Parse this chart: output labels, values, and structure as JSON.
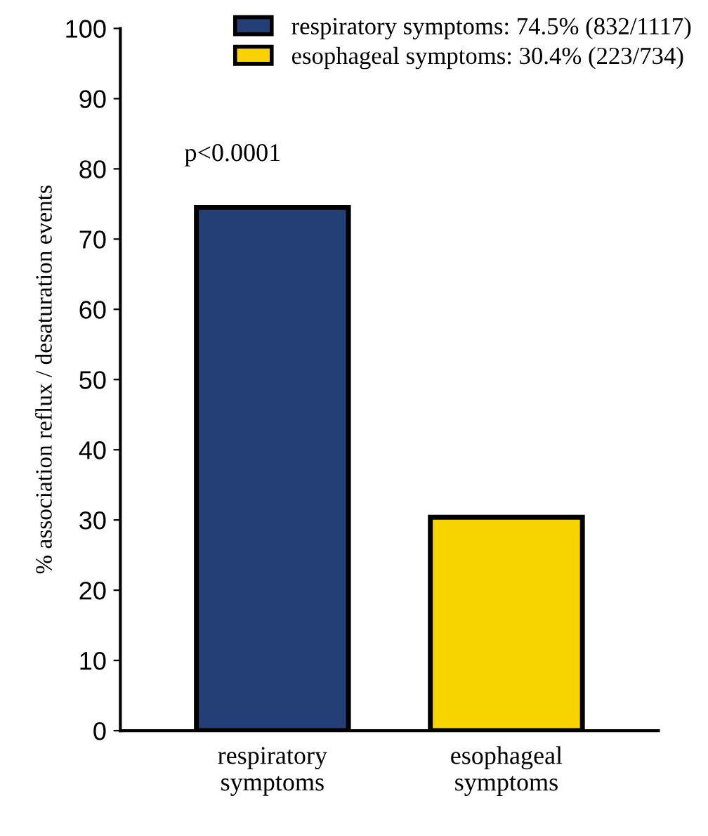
{
  "chart_data": {
    "type": "bar",
    "categories": [
      "respiratory\nsymptoms",
      "esophageal\nsymptoms"
    ],
    "series": [
      {
        "name": "respiratory symptoms: 74.5% (832/1117)",
        "color": "#233f75",
        "values": [
          74.5,
          null
        ]
      },
      {
        "name": "esophageal symptoms: 30.4% (223/734)",
        "color": "#f7d300",
        "values": [
          null,
          30.4
        ]
      }
    ],
    "ylabel": "% association reflux / desaturation events",
    "ylim": [
      0,
      100
    ],
    "yticks": [
      0,
      10,
      20,
      30,
      40,
      50,
      60,
      70,
      80,
      90,
      100
    ],
    "annotations": [
      "p<0.0001"
    ],
    "legend": "top right",
    "grid": false
  }
}
